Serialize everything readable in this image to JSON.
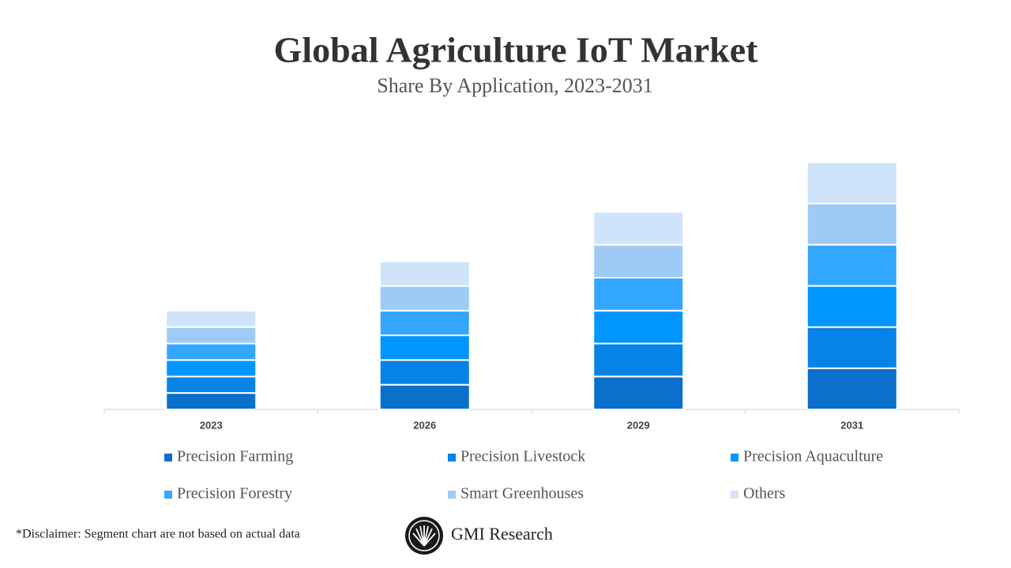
{
  "chart_data": {
    "type": "bar",
    "stacked": true,
    "title": "Global Agriculture IoT Market",
    "subtitle": "Share By Application, 2023-2031",
    "categories": [
      "2023",
      "2026",
      "2029",
      "2031"
    ],
    "series": [
      {
        "name": "Precision Farming",
        "color": "#0b6fcc",
        "values": [
          2,
          3,
          4,
          5
        ]
      },
      {
        "name": "Precision Livestock",
        "color": "#0782e8",
        "values": [
          2,
          3,
          4,
          5
        ]
      },
      {
        "name": "Precision Aquaculture",
        "color": "#0095ff",
        "values": [
          2,
          3,
          4,
          5
        ]
      },
      {
        "name": "Precision Forestry",
        "color": "#33a6ff",
        "values": [
          2,
          3,
          4,
          5
        ]
      },
      {
        "name": "Smart Greenhouses",
        "color": "#9ecbf5",
        "values": [
          2,
          3,
          4,
          5
        ]
      },
      {
        "name": "Others",
        "color": "#cfe4fa",
        "values": [
          2,
          3,
          4,
          5
        ]
      }
    ],
    "ylim": [
      0,
      32
    ]
  },
  "disclaimer": "*Disclaimer:  Segment chart are not based on actual data",
  "brand": "GMI Research"
}
